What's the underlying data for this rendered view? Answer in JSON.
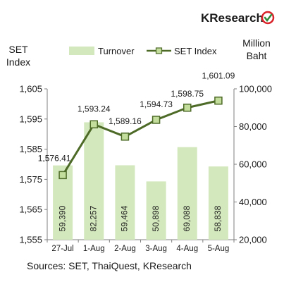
{
  "brand": {
    "name": "KResearch"
  },
  "chart_data": {
    "type": "bar+line",
    "categories": [
      "27-Jul",
      "1-Aug",
      "2-Aug",
      "3-Aug",
      "4-Aug",
      "5-Aug"
    ],
    "series": [
      {
        "name": "Turnover",
        "type": "bar",
        "axis": "right",
        "color": "#d4e8bd",
        "values": [
          59390,
          82257,
          59464,
          50898,
          69088,
          58838
        ],
        "labels": [
          "59,390",
          "82,257",
          "59,464",
          "50,898",
          "69,088",
          "58,838"
        ]
      },
      {
        "name": "SET Index",
        "type": "line",
        "axis": "left",
        "color": "#4d6a27",
        "marker_fill": "#c3dd9c",
        "values": [
          1576.41,
          1593.24,
          1589.16,
          1594.73,
          1598.75,
          1601.09
        ],
        "labels": [
          "1,576.41",
          "1,593.24",
          "1,589.16",
          "1,594.73",
          "1,598.75",
          "1,601.09"
        ]
      }
    ],
    "y_left": {
      "label_line1": "SET",
      "label_line2": "Index",
      "min": 1555,
      "max": 1605,
      "ticks": [
        "1,555",
        "1,565",
        "1,575",
        "1,585",
        "1,595",
        "1,605"
      ]
    },
    "y_right": {
      "label_line1": "Million",
      "label_line2": "Baht",
      "min": 20000,
      "max": 100000,
      "ticks": [
        "20,000",
        "40,000",
        "60,000",
        "80,000",
        "100,000"
      ]
    },
    "legend_position": "top",
    "grid": false
  },
  "footer": {
    "source": "Sources: SET, ThaiQuest, KResearch"
  }
}
